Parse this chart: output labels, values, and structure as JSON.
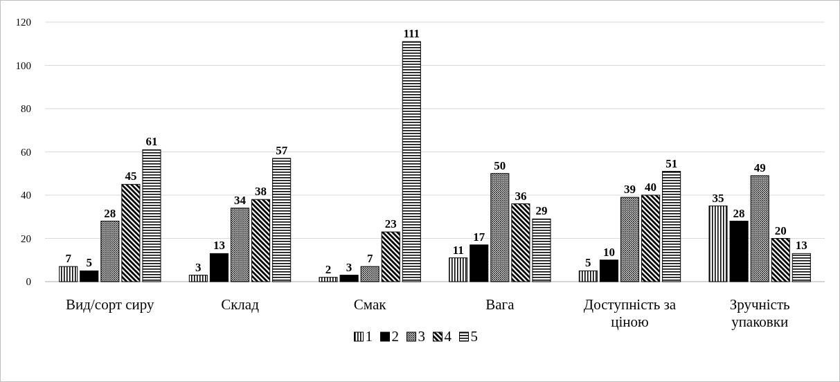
{
  "chart_data": {
    "type": "bar",
    "categories": [
      "Вид/сорт сиру",
      "Склад",
      "Смак",
      "Вага",
      "Доступність за ціною",
      "Зручність упаковки"
    ],
    "series": [
      {
        "name": "1",
        "color": "#000000",
        "values": [
          7,
          3,
          2,
          11,
          5,
          35
        ]
      },
      {
        "name": "2",
        "color": "#000000",
        "values": [
          5,
          13,
          3,
          17,
          10,
          28
        ]
      },
      {
        "name": "3",
        "color": "#000000",
        "values": [
          28,
          34,
          7,
          50,
          39,
          49
        ]
      },
      {
        "name": "4",
        "color": "#000000",
        "values": [
          45,
          38,
          23,
          36,
          40,
          20
        ]
      },
      {
        "name": "5",
        "color": "#000000",
        "values": [
          61,
          57,
          111,
          29,
          51,
          13
        ]
      }
    ],
    "ylim": [
      0,
      120
    ],
    "yticks": [
      0,
      20,
      40,
      60,
      80,
      100,
      120
    ],
    "grid": "y",
    "legend": "bottom",
    "data_labels": true
  }
}
